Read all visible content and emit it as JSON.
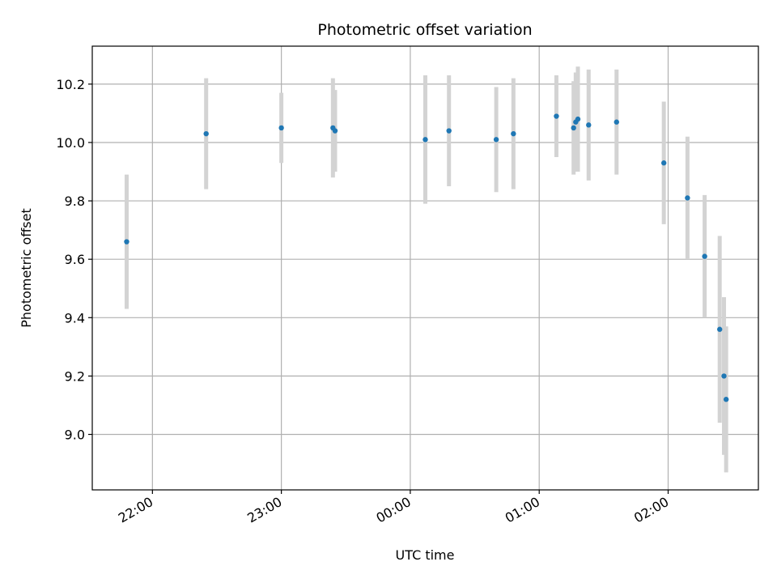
{
  "chart_data": {
    "type": "scatter",
    "title": "Photometric offset variation",
    "xlabel": "UTC time",
    "ylabel": "Photometric offset",
    "x_ticks": [
      "22:00",
      "23:00",
      "00:00",
      "01:00",
      "02:00"
    ],
    "y_ticks": [
      "9.0",
      "9.2",
      "9.4",
      "9.6",
      "9.8",
      "10.0",
      "10.2"
    ],
    "xlim": [
      "21:32",
      "02:42"
    ],
    "ylim": [
      8.81,
      10.33
    ],
    "grid": true,
    "colors": {
      "points": "#1f77b4",
      "errorbars": "#d3d3d3",
      "grid": "#b0b0b0"
    },
    "points": [
      {
        "x": "21:48",
        "y": 9.66,
        "err": 0.23
      },
      {
        "x": "22:25",
        "y": 10.03,
        "err": 0.19
      },
      {
        "x": "23:00",
        "y": 10.05,
        "err": 0.12
      },
      {
        "x": "23:24",
        "y": 10.05,
        "err": 0.17
      },
      {
        "x": "23:25",
        "y": 10.04,
        "err": 0.14
      },
      {
        "x": "00:07",
        "y": 10.01,
        "err": 0.22
      },
      {
        "x": "00:18",
        "y": 10.04,
        "err": 0.19
      },
      {
        "x": "00:40",
        "y": 10.01,
        "err": 0.18
      },
      {
        "x": "00:48",
        "y": 10.03,
        "err": 0.19
      },
      {
        "x": "01:08",
        "y": 10.09,
        "err": 0.14
      },
      {
        "x": "01:16",
        "y": 10.05,
        "err": 0.16
      },
      {
        "x": "01:17",
        "y": 10.07,
        "err": 0.17
      },
      {
        "x": "01:18",
        "y": 10.08,
        "err": 0.18
      },
      {
        "x": "01:23",
        "y": 10.06,
        "err": 0.19
      },
      {
        "x": "01:36",
        "y": 10.07,
        "err": 0.18
      },
      {
        "x": "01:58",
        "y": 9.93,
        "err": 0.21
      },
      {
        "x": "02:09",
        "y": 9.81,
        "err": 0.21
      },
      {
        "x": "02:17",
        "y": 9.61,
        "err": 0.21
      },
      {
        "x": "02:24",
        "y": 9.36,
        "err": 0.32
      },
      {
        "x": "02:26",
        "y": 9.2,
        "err": 0.27
      },
      {
        "x": "02:27",
        "y": 9.12,
        "err": 0.25
      }
    ]
  }
}
